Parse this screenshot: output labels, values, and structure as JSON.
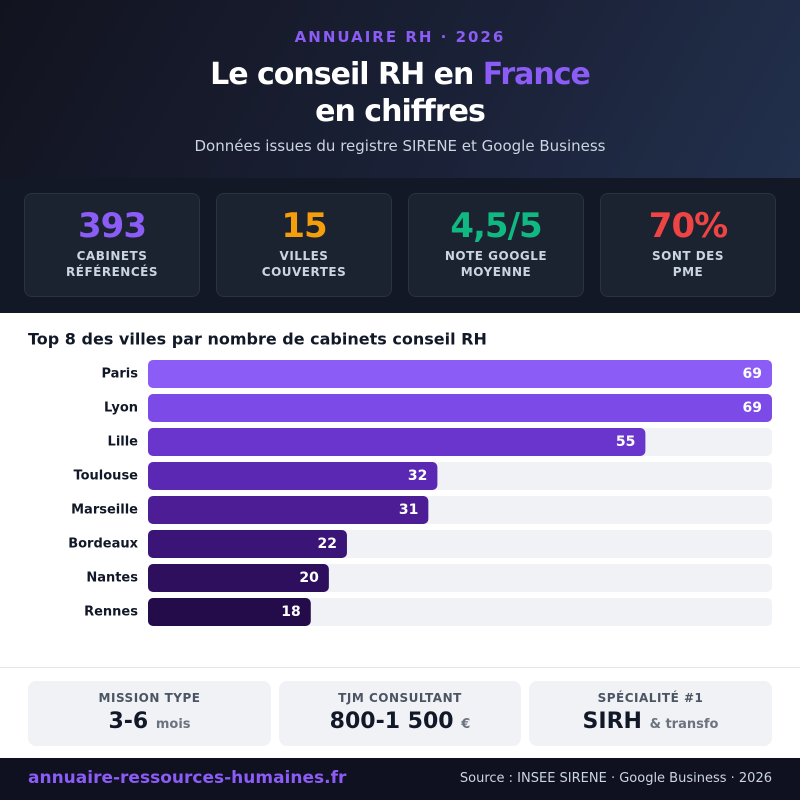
{
  "header": {
    "eyebrow": "ANNUAIRE RH · 2026",
    "title_parts": [
      "Le conseil RH en ",
      "France",
      "en chiffres"
    ],
    "subtitle": "Données issues du registre SIRENE et Google Business"
  },
  "stats": [
    {
      "value": "393",
      "label_lines": [
        "CABINETS",
        "RÉFÉRENCÉS"
      ],
      "color": "#8b5cf6"
    },
    {
      "value": "15",
      "label_lines": [
        "VILLES",
        "COUVERTES"
      ],
      "color": "#f59e0b"
    },
    {
      "value": "4,5/5",
      "label_lines": [
        "NOTE GOOGLE",
        "MOYENNE"
      ],
      "color": "#10b981"
    },
    {
      "value": "70%",
      "label_lines": [
        "SONT DES",
        "PME"
      ],
      "color": "#ef4444"
    }
  ],
  "chart_data": {
    "type": "bar",
    "orientation": "horizontal",
    "title": "Top 8 des villes par nombre de cabinets conseil RH",
    "categories": [
      "Paris",
      "Lyon",
      "Lille",
      "Toulouse",
      "Marseille",
      "Bordeaux",
      "Nantes",
      "Rennes"
    ],
    "values": [
      69,
      69,
      55,
      32,
      31,
      22,
      20,
      18
    ],
    "colors": [
      "#8b5cf6",
      "#7c4ae6",
      "#6a35cc",
      "#5b28b4",
      "#4c1d95",
      "#3b1478",
      "#2e0f5e",
      "#240b4a"
    ],
    "xlim": [
      0,
      69
    ]
  },
  "cards": [
    {
      "label": "MISSION TYPE",
      "value": "3-6",
      "unit": "mois"
    },
    {
      "label": "TJM CONSULTANT",
      "value": "800-1 500",
      "unit": "€"
    },
    {
      "label": "SPÉCIALITÉ #1",
      "value": "SIRH",
      "unit": "& transfo"
    }
  ],
  "footer": {
    "site": "annuaire-ressources-humaines.fr",
    "source": "Source : INSEE SIRENE · Google Business · 2026"
  }
}
